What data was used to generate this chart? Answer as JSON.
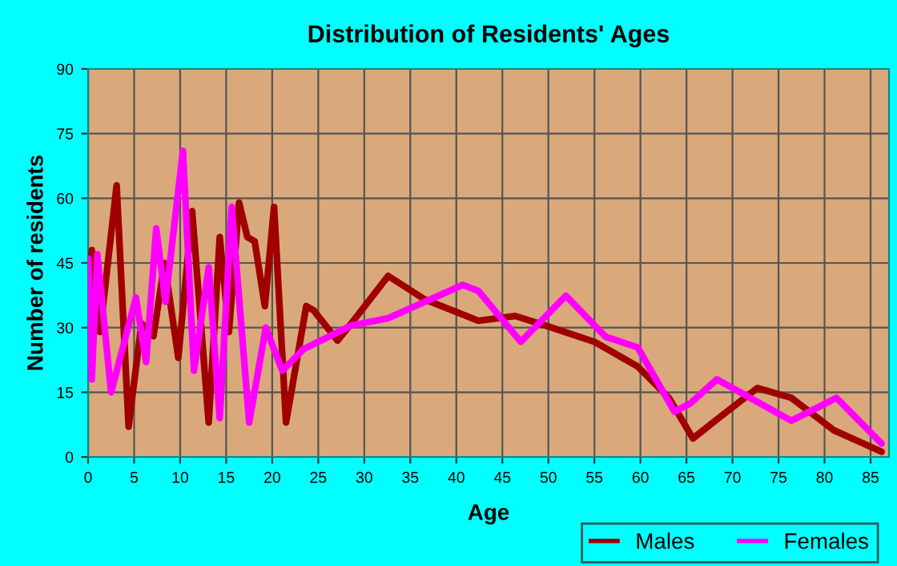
{
  "chart_data": {
    "type": "line",
    "title": "Distribution of Residents' Ages",
    "xlabel": "Age",
    "ylabel": "Number of residents",
    "xlim": [
      0,
      87
    ],
    "xticks": [
      0,
      5,
      10,
      15,
      20,
      25,
      30,
      35,
      40,
      45,
      50,
      55,
      60,
      65,
      70,
      75,
      80,
      85
    ],
    "ylim": [
      0,
      90
    ],
    "yticks": [
      0,
      15,
      30,
      45,
      60,
      75,
      90
    ],
    "grid": true,
    "legend": "bottom right",
    "line_style": "solid",
    "marker": "none",
    "series": [
      {
        "name": "Males",
        "color": "#a00000",
        "x": [
          0,
          0.4,
          1.3,
          3.1,
          4.4,
          5.8,
          7.1,
          8.3,
          9.8,
          11.3,
          13.1,
          14.3,
          15.3,
          16.4,
          17.3,
          18.1,
          19.2,
          20.2,
          21.5,
          23.7,
          24.5,
          27.1,
          28.6,
          32.6,
          36.6,
          42.4,
          46.4,
          49.8,
          55,
          59.7,
          63.1,
          65.7,
          68.3,
          72.7,
          76.4,
          81,
          86.2
        ],
        "values": [
          39,
          48,
          29,
          63,
          7,
          31,
          28,
          45,
          23,
          57,
          8,
          51,
          29,
          59,
          51,
          50,
          35,
          58,
          8,
          35,
          34,
          27,
          31,
          42,
          36.5,
          31.6,
          32.7,
          30.4,
          26.7,
          21,
          13.7,
          4.3,
          8.7,
          16,
          13.7,
          6.2,
          1.2
        ]
      },
      {
        "name": "Females",
        "color": "#ff00ff",
        "x": [
          0,
          0.4,
          1,
          2.5,
          5.2,
          6.3,
          7.4,
          8.4,
          10.3,
          11.5,
          13.1,
          14.3,
          15.6,
          17.5,
          19.3,
          21.1,
          23.4,
          28.6,
          32.6,
          40.7,
          42.4,
          47,
          51.9,
          56.2,
          59.7,
          63.7,
          65.4,
          68.3,
          76.4,
          81.3,
          86.2
        ],
        "values": [
          46,
          18,
          47,
          15,
          37,
          22,
          53,
          36,
          71,
          20,
          44,
          9,
          58,
          8,
          30,
          20,
          25,
          30.5,
          32.2,
          39.9,
          38.5,
          26.7,
          37.4,
          27.9,
          25.4,
          10.5,
          12.4,
          18,
          8.4,
          13.7,
          3.1
        ]
      }
    ]
  }
}
